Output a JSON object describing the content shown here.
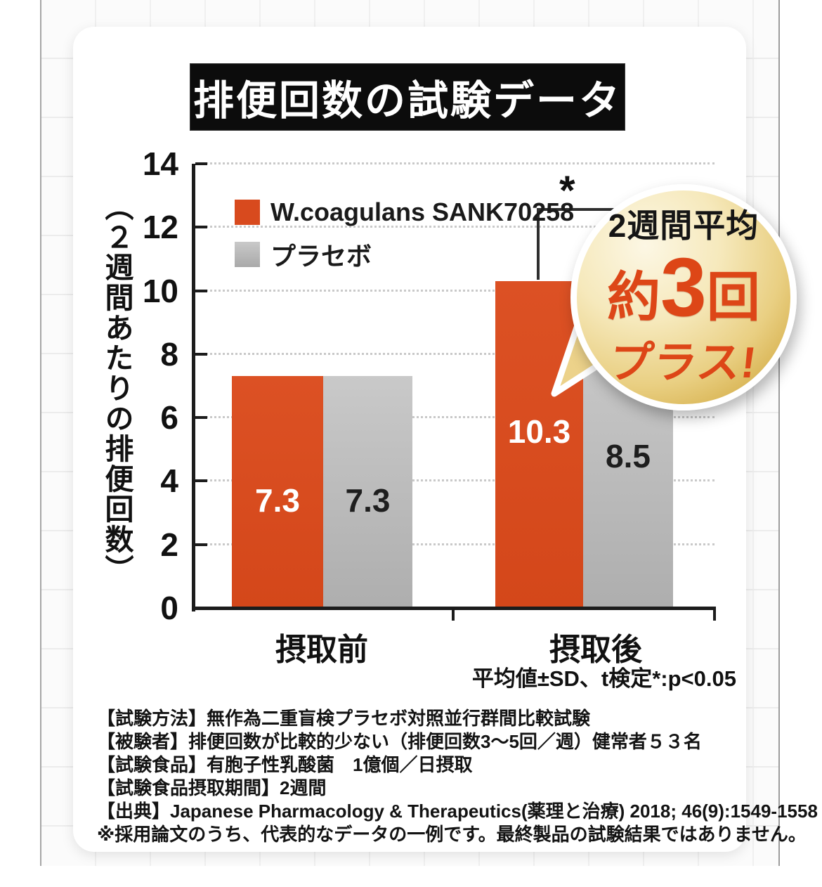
{
  "title": "排便回数の試験データ",
  "chart_data": {
    "type": "bar",
    "title": "排便回数の試験データ",
    "categories": [
      "摂取前",
      "摂取後"
    ],
    "series": [
      {
        "name": "W.coagulans SANK70258",
        "color": "#d84a1e",
        "values": [
          7.3,
          10.3
        ]
      },
      {
        "name": "プラセボ",
        "color": "#bcbcbc",
        "values": [
          7.3,
          8.5
        ]
      }
    ],
    "ylabel": "（２週間あたりの排便回数）",
    "ylim": [
      0,
      14
    ],
    "ytick_step": 2,
    "grid": "dotted-horizontal",
    "legend_position": "top-left-inside",
    "significance": {
      "marker": "*",
      "between": "摂取後: W.coagulans vs プラセボ"
    }
  },
  "badge": {
    "line1": "2週間平均",
    "line2_prefix": "約",
    "line2_number": "3",
    "line2_suffix": "回",
    "line3": "プラス!"
  },
  "stats_note": "平均値±SD、t検定*:p<0.05",
  "footnotes": {
    "lines": [
      "【試験方法】無作為二重盲検プラセボ対照並行群間比較試験",
      "【被験者】排便回数が比較的少ない（排便回数3～5回／週）健常者５３名",
      "【試験食品】有胞子性乳酸菌　1億個／日摂取",
      "【試験食品摂取期間】2週間",
      "【出典】Japanese Pharmacology & Therapeutics(薬理と治療) 2018; 46(9):1549-1558",
      "※採用論文のうち、代表的なデータの一例です。最終製品の試験結果ではありません。"
    ]
  },
  "colors": {
    "bar_orange": "#d84a1e",
    "bar_gray": "#bcbcbc",
    "badge_gold": "#e9cf82",
    "badge_text_red": "#dd4617",
    "title_bg": "#0c0c0c",
    "title_text": "#ffffff"
  }
}
